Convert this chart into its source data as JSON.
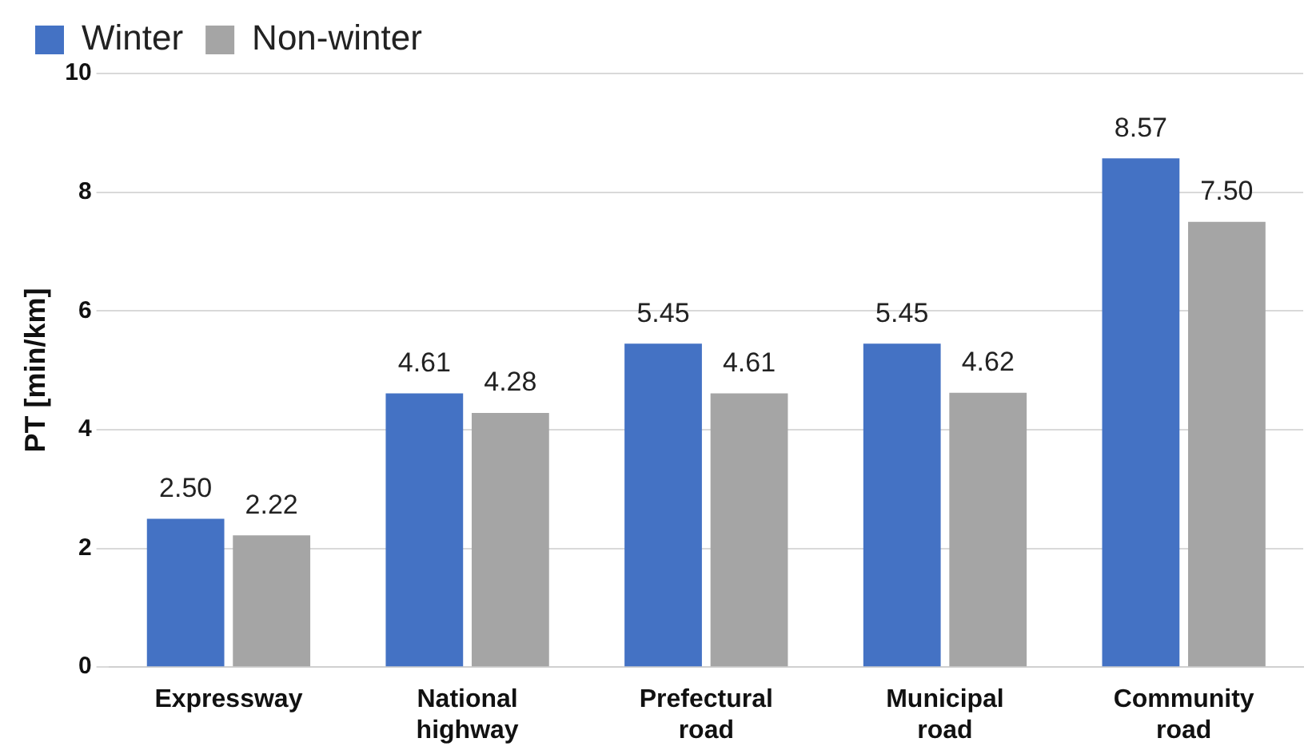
{
  "chart_data": {
    "type": "bar",
    "ylabel": "PT [min/km]",
    "categories": [
      "Expressway",
      "National highway",
      "Prefectural road",
      "Municipal road",
      "Community road"
    ],
    "series": [
      {
        "name": "Winter",
        "color": "#4472c4",
        "values": [
          2.5,
          4.61,
          5.45,
          5.45,
          8.57
        ],
        "value_labels": [
          "2.50",
          "4.61",
          "5.45",
          "5.45",
          "8.57"
        ]
      },
      {
        "name": "Non-winter",
        "color": "#a5a5a5",
        "values": [
          2.22,
          4.28,
          4.61,
          4.62,
          7.5
        ],
        "value_labels": [
          "2.22",
          "4.28",
          "4.61",
          "4.62",
          "7.50"
        ]
      }
    ],
    "ylim": [
      0,
      10
    ],
    "yticks": [
      0,
      2,
      4,
      6,
      8,
      10
    ],
    "grid": "y",
    "legend": "top"
  }
}
